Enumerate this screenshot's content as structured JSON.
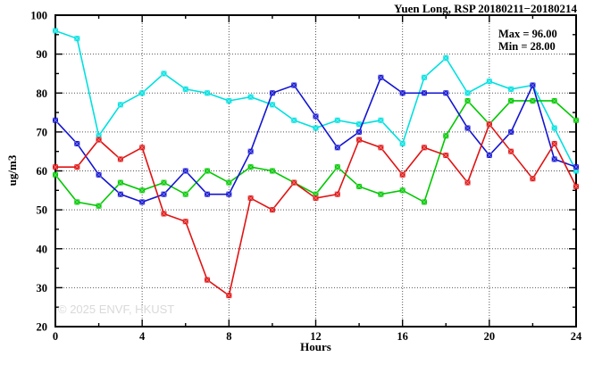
{
  "chart_data": {
    "type": "line",
    "title": "Yuen Long, RSP 20180211−20180214",
    "annotations": {
      "max_label": "Max = 96.00",
      "min_label": "Min = 28.00"
    },
    "xlabel": "Hours",
    "ylabel": "ug/m3",
    "watermark": "© 2025 ENVF, HKUST",
    "xlim": [
      0,
      24
    ],
    "ylim": [
      20,
      100
    ],
    "x_major_step": 4,
    "x_minor_step": 2,
    "y_major_step": 10,
    "y_minor_step": 5,
    "grid": true,
    "legend": "none",
    "x": [
      0,
      1,
      2,
      3,
      4,
      5,
      6,
      7,
      8,
      9,
      10,
      11,
      12,
      13,
      14,
      15,
      16,
      17,
      18,
      19,
      20,
      21,
      22,
      23,
      24
    ],
    "series": [
      {
        "name": "series-cyan",
        "color": "#00e0e0",
        "values": [
          96,
          94,
          69,
          77,
          80,
          85,
          81,
          80,
          78,
          79,
          77,
          73,
          71,
          73,
          72,
          73,
          67,
          84,
          89,
          80,
          83,
          81,
          82,
          71,
          60
        ]
      },
      {
        "name": "series-green",
        "color": "#00c800",
        "values": [
          59,
          52,
          51,
          57,
          55,
          57,
          54,
          60,
          57,
          61,
          60,
          57,
          54,
          61,
          56,
          54,
          55,
          52,
          69,
          78,
          72,
          78,
          78,
          78,
          73
        ]
      },
      {
        "name": "series-blue",
        "color": "#1414d2",
        "values": [
          73,
          67,
          59,
          54,
          52,
          54,
          60,
          54,
          54,
          65,
          80,
          82,
          74,
          66,
          70,
          84,
          80,
          80,
          80,
          71,
          64,
          70,
          82,
          63,
          61
        ]
      },
      {
        "name": "series-red",
        "color": "#e01414",
        "values": [
          61,
          61,
          68,
          63,
          66,
          49,
          47,
          32,
          28,
          53,
          50,
          57,
          53,
          54,
          68,
          66,
          59,
          66,
          64,
          57,
          72,
          65,
          58,
          67,
          56
        ]
      }
    ],
    "axis_color": "#000000",
    "grid_color": "#555555"
  }
}
